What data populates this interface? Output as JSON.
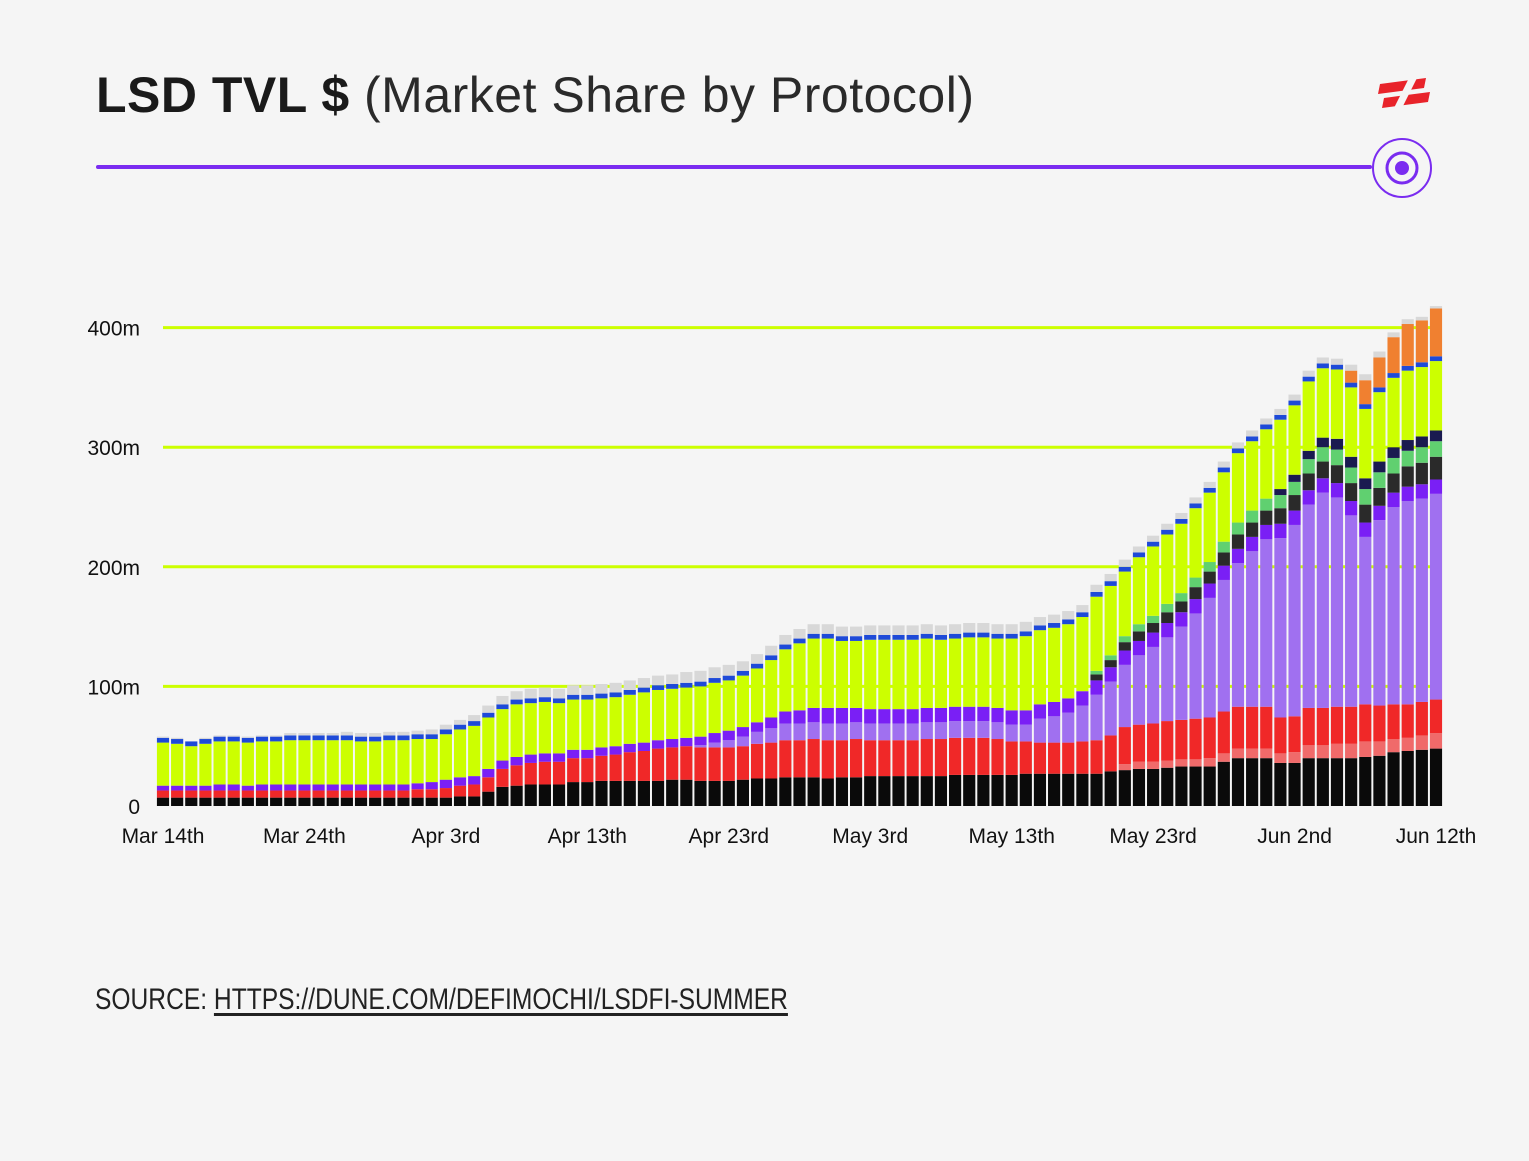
{
  "header": {
    "title_bold": "LSD TVL $",
    "title_light": "(Market Share by Protocol)"
  },
  "footer": {
    "source_label": "SOURCE:",
    "source_link": "HTTPS://DUNE.COM/DEFIMOCHI/LSDFI-SUMMER"
  },
  "colors": {
    "background": "#f5f5f5",
    "accent_rule": "#7a2cf0",
    "gridline": "#ccff00",
    "logo_red": "#e8232a"
  },
  "icons": {
    "brand": "brand-logo-icon",
    "target": "target-icon"
  },
  "chart_data": {
    "type": "bar",
    "stacked": true,
    "title": "",
    "xlabel": "",
    "ylabel": "",
    "x_tick_labels": [
      "Mar 14th",
      "Mar 24th",
      "Apr 3rd",
      "Apr 13th",
      "Apr 23rd",
      "May 3rd",
      "May 13th",
      "May 23rd",
      "Jun 2nd",
      "Jun 12th"
    ],
    "y_tick_labels": [
      "0",
      "100m",
      "200m",
      "300m",
      "400m"
    ],
    "y_ticks": [
      0,
      100,
      200,
      300,
      400
    ],
    "ylim": [
      0,
      420
    ],
    "grid": true,
    "legend": "none",
    "series_colors": [
      "#0a0a0a",
      "#f06a6a",
      "#f02828",
      "#a070f0",
      "#7a1ff5",
      "#2a2a2a",
      "#60d070",
      "#1a1a50",
      "#ccff00",
      "#1e4ad8",
      "#f08030",
      "#d8d8d8"
    ],
    "stack_order_note": "bottom to top",
    "categories": [
      "Mar 14",
      "Mar 15",
      "Mar 16",
      "Mar 17",
      "Mar 18",
      "Mar 19",
      "Mar 20",
      "Mar 21",
      "Mar 22",
      "Mar 23",
      "Mar 24",
      "Mar 25",
      "Mar 26",
      "Mar 27",
      "Mar 28",
      "Mar 29",
      "Mar 30",
      "Mar 31",
      "Apr 1",
      "Apr 2",
      "Apr 3",
      "Apr 4",
      "Apr 5",
      "Apr 6",
      "Apr 7",
      "Apr 8",
      "Apr 9",
      "Apr 10",
      "Apr 11",
      "Apr 12",
      "Apr 13",
      "Apr 14",
      "Apr 15",
      "Apr 16",
      "Apr 17",
      "Apr 18",
      "Apr 19",
      "Apr 20",
      "Apr 21",
      "Apr 22",
      "Apr 23",
      "Apr 24",
      "Apr 25",
      "Apr 26",
      "Apr 27",
      "Apr 28",
      "Apr 29",
      "Apr 30",
      "May 1",
      "May 2",
      "May 3",
      "May 4",
      "May 5",
      "May 6",
      "May 7",
      "May 8",
      "May 9",
      "May 10",
      "May 11",
      "May 12",
      "May 13",
      "May 14",
      "May 15",
      "May 16",
      "May 17",
      "May 18",
      "May 19",
      "May 20",
      "May 21",
      "May 22",
      "May 23",
      "May 24",
      "May 25",
      "May 26",
      "May 27",
      "May 28",
      "May 29",
      "May 30",
      "May 31",
      "Jun 1",
      "Jun 2",
      "Jun 3",
      "Jun 4",
      "Jun 5",
      "Jun 6",
      "Jun 7",
      "Jun 8",
      "Jun 9",
      "Jun 10",
      "Jun 11",
      "Jun 12"
    ],
    "series": [
      {
        "values": [
          7,
          7,
          7,
          7,
          7,
          7,
          7,
          7,
          7,
          7,
          7,
          7,
          7,
          7,
          7,
          7,
          7,
          7,
          7,
          7,
          7,
          8,
          8,
          12,
          16,
          17,
          18,
          18,
          18,
          20,
          20,
          21,
          21,
          21,
          21,
          21,
          22,
          22,
          21,
          21,
          21,
          22,
          23,
          23,
          24,
          24,
          24,
          23,
          24,
          24,
          25,
          25,
          25,
          25,
          25,
          25,
          26,
          26,
          26,
          26,
          26,
          27,
          27,
          27,
          27,
          27,
          27,
          29,
          30,
          31,
          31,
          32,
          33,
          33,
          33,
          37,
          40,
          40,
          40,
          36,
          36,
          40,
          40,
          40,
          40,
          41,
          42,
          45,
          46,
          47,
          48
        ]
      },
      {
        "values": [
          0,
          0,
          0,
          0,
          0,
          0,
          0,
          0,
          0,
          0,
          0,
          0,
          0,
          0,
          0,
          0,
          0,
          0,
          0,
          0,
          0,
          0,
          0,
          0,
          0,
          0,
          0,
          0,
          0,
          0,
          0,
          0,
          0,
          0,
          0,
          0,
          0,
          0,
          0,
          0,
          0,
          0,
          0,
          0,
          0,
          0,
          0,
          0,
          0,
          0,
          0,
          0,
          0,
          0,
          0,
          0,
          0,
          0,
          0,
          0,
          0,
          0,
          0,
          0,
          0,
          0,
          0,
          0,
          5,
          6,
          6,
          6,
          6,
          6,
          7,
          7,
          8,
          8,
          8,
          8,
          9,
          11,
          11,
          12,
          12,
          13,
          12,
          11,
          11,
          12,
          13
        ]
      },
      {
        "values": [
          6,
          6,
          6,
          6,
          6,
          6,
          6,
          6,
          6,
          6,
          6,
          6,
          6,
          6,
          6,
          6,
          6,
          6,
          7,
          7,
          8,
          9,
          10,
          12,
          15,
          17,
          18,
          19,
          19,
          20,
          20,
          21,
          22,
          24,
          25,
          27,
          27,
          28,
          28,
          28,
          28,
          28,
          29,
          30,
          31,
          31,
          32,
          32,
          31,
          32,
          30,
          30,
          30,
          30,
          31,
          31,
          31,
          31,
          31,
          30,
          28,
          27,
          26,
          26,
          26,
          27,
          28,
          30,
          31,
          31,
          32,
          33,
          33,
          34,
          34,
          35,
          35,
          35,
          35,
          30,
          30,
          31,
          31,
          31,
          31,
          31,
          30,
          29,
          28,
          28,
          28
        ]
      },
      {
        "values": [
          0,
          0,
          0,
          0,
          0,
          0,
          0,
          0,
          0,
          0,
          0,
          0,
          0,
          0,
          0,
          0,
          0,
          0,
          0,
          0,
          0,
          0,
          0,
          0,
          0,
          0,
          0,
          0,
          0,
          0,
          0,
          0,
          0,
          0,
          0,
          0,
          0,
          0,
          2,
          4,
          6,
          8,
          10,
          12,
          14,
          14,
          14,
          14,
          14,
          14,
          14,
          14,
          14,
          14,
          14,
          14,
          14,
          14,
          14,
          14,
          14,
          14,
          20,
          22,
          25,
          30,
          38,
          45,
          52,
          58,
          64,
          70,
          78,
          88,
          100,
          110,
          120,
          130,
          140,
          150,
          160,
          170,
          180,
          175,
          160,
          140,
          155,
          165,
          170,
          170,
          172
        ]
      },
      {
        "values": [
          4,
          4,
          4,
          4,
          5,
          5,
          4,
          5,
          5,
          5,
          5,
          5,
          5,
          5,
          5,
          5,
          5,
          5,
          5,
          6,
          7,
          7,
          7,
          7,
          7,
          7,
          7,
          7,
          7,
          7,
          7,
          7,
          7,
          7,
          7,
          7,
          7,
          7,
          7,
          8,
          8,
          8,
          8,
          9,
          10,
          11,
          12,
          13,
          13,
          12,
          12,
          12,
          12,
          12,
          12,
          12,
          12,
          12,
          12,
          12,
          12,
          12,
          12,
          12,
          12,
          12,
          12,
          12,
          12,
          12,
          12,
          12,
          12,
          12,
          12,
          12,
          12,
          12,
          12,
          12,
          12,
          12,
          12,
          12,
          12,
          12,
          12,
          12,
          12,
          12,
          12
        ]
      },
      {
        "values": [
          0,
          0,
          0,
          0,
          0,
          0,
          0,
          0,
          0,
          0,
          0,
          0,
          0,
          0,
          0,
          0,
          0,
          0,
          0,
          0,
          0,
          0,
          0,
          0,
          0,
          0,
          0,
          0,
          0,
          0,
          0,
          0,
          0,
          0,
          0,
          0,
          0,
          0,
          0,
          0,
          0,
          0,
          0,
          0,
          0,
          0,
          0,
          0,
          0,
          0,
          0,
          0,
          0,
          0,
          0,
          0,
          0,
          0,
          0,
          0,
          0,
          0,
          0,
          0,
          0,
          0,
          5,
          6,
          7,
          8,
          8,
          9,
          9,
          10,
          10,
          11,
          12,
          12,
          12,
          13,
          13,
          14,
          14,
          15,
          15,
          15,
          15,
          16,
          17,
          18,
          19
        ]
      },
      {
        "values": [
          0,
          0,
          0,
          0,
          0,
          0,
          0,
          0,
          0,
          0,
          0,
          0,
          0,
          0,
          0,
          0,
          0,
          0,
          0,
          0,
          0,
          0,
          0,
          0,
          0,
          0,
          0,
          0,
          0,
          0,
          0,
          0,
          0,
          0,
          0,
          0,
          0,
          0,
          0,
          0,
          0,
          0,
          0,
          0,
          0,
          0,
          0,
          0,
          0,
          0,
          0,
          0,
          0,
          0,
          0,
          0,
          0,
          0,
          0,
          0,
          0,
          0,
          0,
          0,
          0,
          0,
          3,
          4,
          5,
          6,
          6,
          7,
          7,
          8,
          8,
          9,
          10,
          10,
          10,
          11,
          11,
          12,
          12,
          13,
          13,
          13,
          13,
          13,
          13,
          13,
          13
        ]
      },
      {
        "values": [
          0,
          0,
          0,
          0,
          0,
          0,
          0,
          0,
          0,
          0,
          0,
          0,
          0,
          0,
          0,
          0,
          0,
          0,
          0,
          0,
          0,
          0,
          0,
          0,
          0,
          0,
          0,
          0,
          0,
          0,
          0,
          0,
          0,
          0,
          0,
          0,
          0,
          0,
          0,
          0,
          0,
          0,
          0,
          0,
          0,
          0,
          0,
          0,
          0,
          0,
          0,
          0,
          0,
          0,
          0,
          0,
          0,
          0,
          0,
          0,
          0,
          0,
          0,
          0,
          0,
          0,
          0,
          0,
          0,
          0,
          0,
          0,
          0,
          0,
          0,
          0,
          0,
          0,
          0,
          5,
          6,
          7,
          8,
          9,
          9,
          9,
          9,
          9,
          9,
          9,
          9
        ]
      },
      {
        "values": [
          36,
          35,
          33,
          35,
          36,
          36,
          36,
          36,
          36,
          37,
          37,
          37,
          37,
          37,
          36,
          36,
          37,
          37,
          37,
          36,
          38,
          40,
          42,
          43,
          43,
          44,
          43,
          43,
          42,
          42,
          42,
          41,
          41,
          41,
          42,
          42,
          42,
          42,
          42,
          42,
          42,
          43,
          45,
          48,
          52,
          56,
          58,
          58,
          56,
          56,
          58,
          58,
          58,
          58,
          58,
          57,
          57,
          58,
          58,
          58,
          60,
          62,
          62,
          62,
          62,
          62,
          62,
          58,
          54,
          56,
          58,
          58,
          58,
          58,
          58,
          58,
          58,
          58,
          58,
          58,
          58,
          58,
          58,
          58,
          58,
          58,
          58,
          58,
          58,
          58,
          58
        ]
      },
      {
        "values": [
          4,
          4,
          4,
          4,
          4,
          4,
          4,
          4,
          4,
          4,
          4,
          4,
          4,
          4,
          4,
          4,
          4,
          4,
          4,
          4,
          4,
          4,
          4,
          4,
          4,
          4,
          4,
          4,
          4,
          4,
          4,
          4,
          4,
          4,
          4,
          4,
          4,
          4,
          4,
          4,
          4,
          4,
          4,
          4,
          4,
          4,
          4,
          4,
          4,
          4,
          4,
          4,
          4,
          4,
          4,
          4,
          4,
          4,
          4,
          4,
          4,
          4,
          4,
          4,
          4,
          4,
          4,
          4,
          4,
          4,
          4,
          4,
          4,
          4,
          4,
          4,
          4,
          4,
          4,
          4,
          4,
          4,
          4,
          4,
          4,
          4,
          4,
          4,
          4,
          4,
          4
        ]
      },
      {
        "values": [
          0,
          0,
          0,
          0,
          0,
          0,
          0,
          0,
          0,
          0,
          0,
          0,
          0,
          0,
          0,
          0,
          0,
          0,
          0,
          0,
          0,
          0,
          0,
          0,
          0,
          0,
          0,
          0,
          0,
          0,
          0,
          0,
          0,
          0,
          0,
          0,
          0,
          0,
          0,
          0,
          0,
          0,
          0,
          0,
          0,
          0,
          0,
          0,
          0,
          0,
          0,
          0,
          0,
          0,
          0,
          0,
          0,
          0,
          0,
          0,
          0,
          0,
          0,
          0,
          0,
          0,
          0,
          0,
          0,
          0,
          0,
          0,
          0,
          0,
          0,
          0,
          0,
          0,
          0,
          0,
          0,
          0,
          0,
          0,
          10,
          20,
          25,
          30,
          35,
          35,
          40
        ]
      },
      {
        "values": [
          1,
          1,
          0,
          1,
          1,
          1,
          1,
          1,
          1,
          2,
          2,
          2,
          2,
          3,
          3,
          3,
          3,
          3,
          3,
          4,
          4,
          4,
          5,
          6,
          7,
          7,
          8,
          8,
          8,
          8,
          8,
          8,
          8,
          8,
          8,
          8,
          8,
          9,
          9,
          9,
          9,
          8,
          8,
          8,
          8,
          8,
          8,
          8,
          8,
          8,
          8,
          8,
          8,
          8,
          8,
          8,
          8,
          8,
          8,
          8,
          8,
          8,
          7,
          7,
          7,
          6,
          6,
          6,
          6,
          5,
          5,
          5,
          5,
          5,
          5,
          5,
          5,
          5,
          5,
          5,
          5,
          5,
          5,
          5,
          5,
          5,
          5,
          4,
          4,
          3,
          2
        ]
      }
    ]
  }
}
